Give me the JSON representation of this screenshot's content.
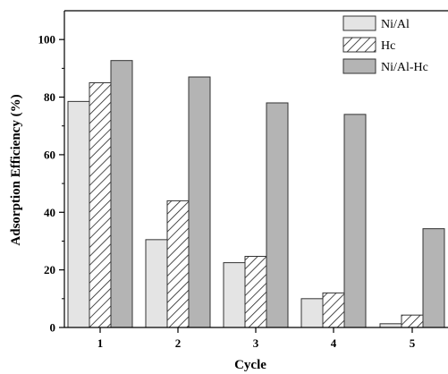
{
  "chart_data": {
    "type": "bar",
    "categories": [
      "1",
      "2",
      "3",
      "4",
      "5"
    ],
    "series": [
      {
        "name": "Ni/Al",
        "values": [
          78.5,
          30.5,
          22.5,
          10.0,
          1.3
        ],
        "fill": "#e4e4e4",
        "pattern": "solid"
      },
      {
        "name": "Hc",
        "values": [
          85.0,
          44.0,
          24.7,
          12.0,
          4.3
        ],
        "fill": "#ffffff",
        "pattern": "diagonal-hatch"
      },
      {
        "name": "Ni/Al-Hc",
        "values": [
          92.7,
          87.0,
          78.0,
          74.0,
          34.3
        ],
        "fill": "#b4b4b4",
        "pattern": "solid"
      }
    ],
    "ylim": [
      0,
      110
    ],
    "yticks": [
      0,
      20,
      40,
      60,
      80,
      100
    ],
    "xlabel": "Cycle",
    "ylabel": "Adsorption Efficiency (%)",
    "legend_position": "top-right",
    "grid": false
  }
}
